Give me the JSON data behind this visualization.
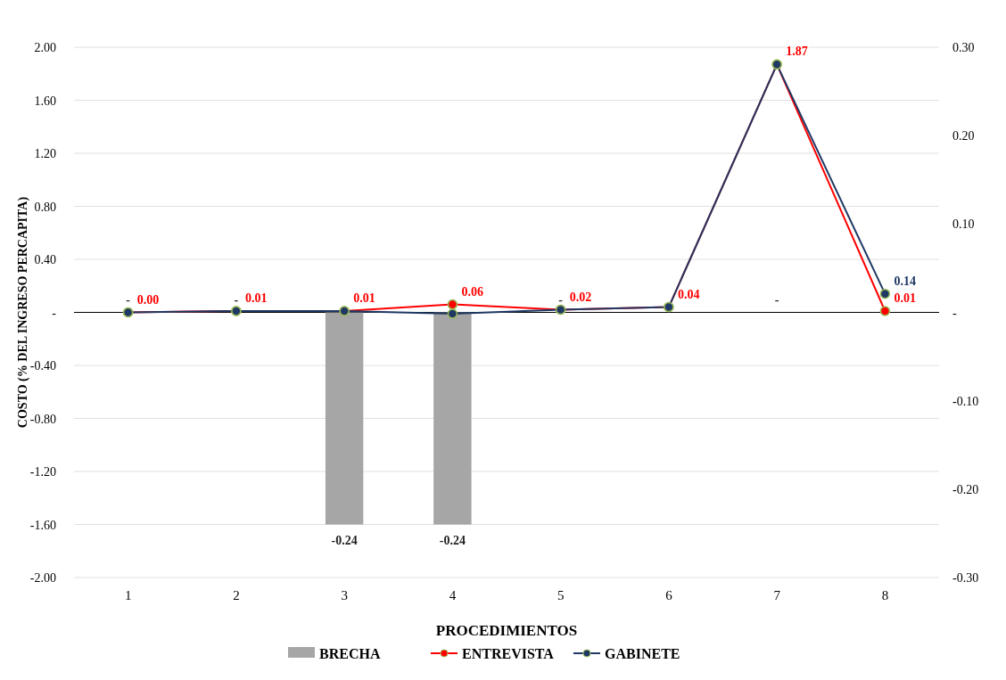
{
  "chart_data": {
    "type": "bar",
    "xlabel": "PROCEDIMIENTOS",
    "ylabel": "COSTO (% DEL INGRESO PERCAPITA)",
    "categories": [
      "1",
      "2",
      "3",
      "4",
      "5",
      "6",
      "7",
      "8"
    ],
    "series": [
      {
        "name": "BRECHA",
        "axis": "y2",
        "color": "#a6a6a6",
        "values": [
          0,
          0,
          -0.24,
          -0.24,
          0,
          0,
          0,
          0
        ],
        "value_labels": [
          "-",
          "-",
          "-0.24",
          "-0.24",
          "-",
          null,
          "-",
          null
        ]
      },
      {
        "name": "ENTREVISTA",
        "type": "line",
        "color": "#ff0000",
        "values": [
          0.0,
          0.01,
          0.01,
          0.06,
          0.02,
          0.04,
          1.87,
          0.01
        ],
        "value_labels": [
          "0.00",
          "0.01",
          "0.01",
          "0.06",
          "0.02",
          "0.04",
          "1.87",
          "0.01"
        ]
      },
      {
        "name": "GABINETE",
        "type": "line",
        "color": "#1f3864",
        "values": [
          0.0,
          0.01,
          0.01,
          -0.01,
          0.02,
          0.04,
          1.87,
          0.14
        ],
        "value_labels": [
          null,
          null,
          null,
          null,
          null,
          null,
          null,
          "0.14"
        ]
      }
    ],
    "ylim": [
      -2,
      2
    ],
    "yticks": [
      {
        "value": 2,
        "label": "2.00"
      },
      {
        "value": 1.6,
        "label": "1.60"
      },
      {
        "value": 1.2,
        "label": "1.20"
      },
      {
        "value": 0.8,
        "label": "0.80"
      },
      {
        "value": 0.4,
        "label": "0.40"
      },
      {
        "value": 0,
        "label": "-"
      },
      {
        "value": -0.4,
        "label": "-0.40"
      },
      {
        "value": -0.8,
        "label": "-0.80"
      },
      {
        "value": -1.2,
        "label": "-1.20"
      },
      {
        "value": -1.6,
        "label": "-1.60"
      },
      {
        "value": -2,
        "label": "-2.00"
      }
    ],
    "y2lim": [
      -0.3,
      0.3
    ],
    "y2ticks": [
      {
        "value": 0.3,
        "label": "0.30"
      },
      {
        "value": 0.2,
        "label": "0.20"
      },
      {
        "value": 0.1,
        "label": "0.10"
      },
      {
        "value": 0,
        "label": "-"
      },
      {
        "value": -0.1,
        "label": "-0.10"
      },
      {
        "value": -0.2,
        "label": "-0.20"
      },
      {
        "value": -0.3,
        "label": "-0.30"
      }
    ],
    "grid": "y",
    "legend": "bottom",
    "marker": "circle",
    "line_style": "solid"
  }
}
